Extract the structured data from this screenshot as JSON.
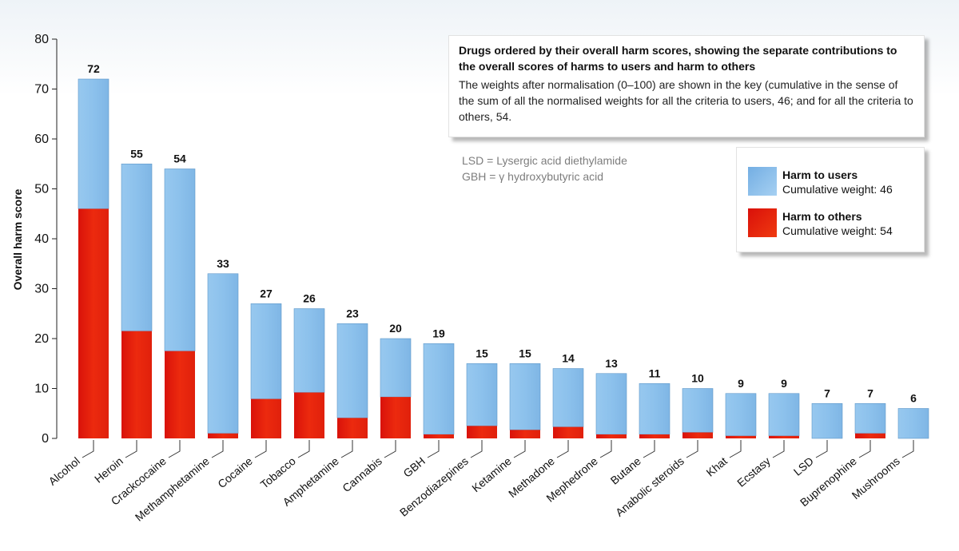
{
  "chart_data": {
    "type": "bar",
    "stacked": true,
    "ylabel": "Overall harm score",
    "ylim": [
      0,
      80
    ],
    "yticks": [
      0,
      10,
      20,
      30,
      40,
      50,
      60,
      70,
      80
    ],
    "categories": [
      "Alcohol",
      "Heroin",
      "Crackcocaine",
      "Methamphetamine",
      "Cocaine",
      "Tobacco",
      "Amphetamine",
      "Cannabis",
      "GBH",
      "Benzodiazepines",
      "Ketamine",
      "Methadone",
      "Mephedrone",
      "Butane",
      "Anabolic steroids",
      "Khat",
      "Ecstasy",
      "LSD",
      "Buprenophine",
      "Mushrooms"
    ],
    "totals": [
      72,
      55,
      54,
      33,
      27,
      26,
      23,
      20,
      19,
      15,
      15,
      14,
      13,
      11,
      10,
      9,
      9,
      7,
      7,
      6
    ],
    "series": [
      {
        "name": "Harm to others",
        "color": "#e8200c",
        "values": [
          46,
          21.5,
          17.5,
          1,
          7.9,
          9.2,
          4.1,
          8.3,
          0.8,
          2.5,
          1.7,
          2.3,
          0.8,
          0.8,
          1.2,
          0.5,
          0.5,
          0,
          1,
          0
        ]
      },
      {
        "name": "Harm to users",
        "color": "#88bfea",
        "values": [
          26,
          33.5,
          36.5,
          32,
          19.1,
          16.8,
          18.9,
          11.7,
          18.2,
          12.5,
          13.3,
          11.7,
          12.2,
          10.2,
          8.8,
          8.5,
          8.5,
          7,
          6,
          6
        ]
      }
    ]
  },
  "info": {
    "title": "Drugs ordered by their overall harm scores, showing the separate contributions to the overall scores of harms to users and harm to others",
    "body": "The weights after normalisation (0–100) are shown in the key (cumulative in the sense of the sum of all the normalised weights for all the criteria to users, 46; and for all the criteria to others, 54."
  },
  "abbreviations": {
    "lsd": "LSD = Lysergic acid diethylamide",
    "gbh": "GBH = γ hydroxybutyric acid"
  },
  "legend": {
    "users": {
      "name": "Harm to users",
      "weight": "Cumulative weight: 46"
    },
    "others": {
      "name": "Harm to others",
      "weight": "Cumulative weight: 54"
    }
  }
}
